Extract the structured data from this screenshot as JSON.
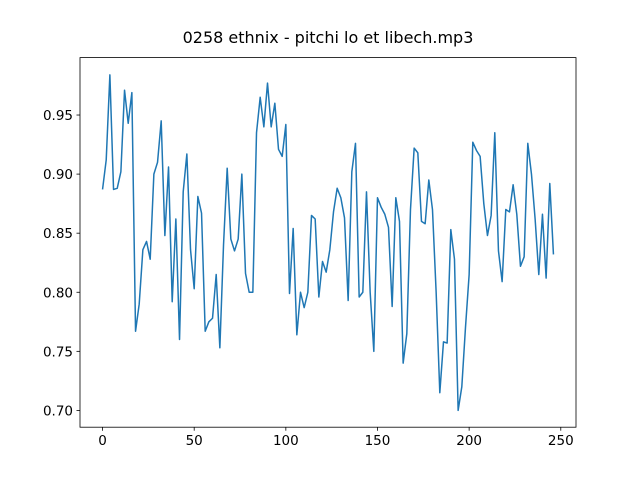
{
  "chart_data": {
    "type": "line",
    "title": "0258 ethnix - pitchi lo et libech.mp3",
    "x": [
      0,
      2,
      4,
      6,
      8,
      10,
      12,
      14,
      16,
      18,
      20,
      22,
      24,
      26,
      28,
      30,
      32,
      34,
      36,
      38,
      40,
      42,
      44,
      46,
      48,
      50,
      52,
      54,
      56,
      58,
      60,
      62,
      64,
      66,
      68,
      70,
      72,
      74,
      76,
      78,
      80,
      82,
      84,
      86,
      88,
      90,
      92,
      94,
      96,
      98,
      100,
      102,
      104,
      106,
      108,
      110,
      112,
      114,
      116,
      118,
      120,
      122,
      124,
      126,
      128,
      130,
      132,
      134,
      136,
      138,
      140,
      142,
      144,
      146,
      148,
      150,
      152,
      154,
      156,
      158,
      160,
      162,
      164,
      166,
      168,
      170,
      172,
      174,
      176,
      178,
      180,
      182,
      184,
      186,
      188,
      190,
      192,
      194,
      196,
      198,
      200,
      202,
      204,
      206,
      208,
      210,
      212,
      214,
      216,
      218,
      220,
      222,
      224,
      226,
      228,
      230,
      232,
      234,
      236,
      238,
      240,
      242,
      244,
      246
    ],
    "series": [
      {
        "color": "#1f77b4",
        "values": [
          0.887,
          0.912,
          0.984,
          0.887,
          0.888,
          0.902,
          0.971,
          0.943,
          0.969,
          0.767,
          0.79,
          0.836,
          0.843,
          0.828,
          0.9,
          0.91,
          0.945,
          0.848,
          0.906,
          0.792,
          0.862,
          0.76,
          0.885,
          0.917,
          0.836,
          0.803,
          0.881,
          0.867,
          0.767,
          0.775,
          0.778,
          0.815,
          0.753,
          0.84,
          0.905,
          0.845,
          0.835,
          0.845,
          0.9,
          0.816,
          0.8,
          0.8,
          0.935,
          0.965,
          0.94,
          0.977,
          0.94,
          0.96,
          0.921,
          0.915,
          0.942,
          0.799,
          0.854,
          0.764,
          0.8,
          0.787,
          0.8,
          0.865,
          0.862,
          0.796,
          0.826,
          0.817,
          0.836,
          0.868,
          0.888,
          0.88,
          0.863,
          0.793,
          0.902,
          0.926,
          0.796,
          0.8,
          0.885,
          0.8,
          0.75,
          0.88,
          0.872,
          0.866,
          0.855,
          0.788,
          0.88,
          0.86,
          0.74,
          0.765,
          0.87,
          0.922,
          0.918,
          0.86,
          0.858,
          0.895,
          0.87,
          0.8,
          0.715,
          0.758,
          0.757,
          0.853,
          0.828,
          0.7,
          0.72,
          0.77,
          0.815,
          0.927,
          0.92,
          0.915,
          0.875,
          0.848,
          0.865,
          0.935,
          0.835,
          0.809,
          0.87,
          0.868,
          0.891,
          0.866,
          0.822,
          0.83,
          0.926,
          0.9,
          0.862,
          0.815,
          0.866,
          0.812,
          0.892,
          0.832
        ]
      }
    ],
    "xlim": [
      -12.3,
      258.3
    ],
    "ylim": [
      0.6858,
      0.9986
    ],
    "xticks": [
      0,
      50,
      100,
      150,
      200,
      250
    ],
    "yticks": [
      {
        "value": 0.7,
        "label": "0.70"
      },
      0.75,
      {
        "value": 0.8,
        "label": "0.80"
      },
      0.85,
      {
        "value": 0.9,
        "label": "0.90"
      },
      0.95
    ]
  }
}
